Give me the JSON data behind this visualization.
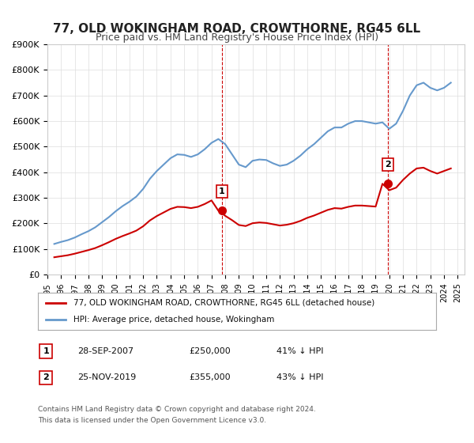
{
  "title": "77, OLD WOKINGHAM ROAD, CROWTHORNE, RG45 6LL",
  "subtitle": "Price paid vs. HM Land Registry's House Price Index (HPI)",
  "title_fontsize": 11,
  "subtitle_fontsize": 9,
  "background_color": "#ffffff",
  "plot_bg_color": "#ffffff",
  "grid_color": "#dddddd",
  "hpi_dates": [
    1995.5,
    1996.0,
    1996.5,
    1997.0,
    1997.5,
    1998.0,
    1998.5,
    1999.0,
    1999.5,
    2000.0,
    2000.5,
    2001.0,
    2001.5,
    2002.0,
    2002.5,
    2003.0,
    2003.5,
    2004.0,
    2004.5,
    2005.0,
    2005.5,
    2006.0,
    2006.5,
    2007.0,
    2007.5,
    2008.0,
    2008.5,
    2009.0,
    2009.5,
    2010.0,
    2010.5,
    2011.0,
    2011.5,
    2012.0,
    2012.5,
    2013.0,
    2013.5,
    2014.0,
    2014.5,
    2015.0,
    2015.5,
    2016.0,
    2016.5,
    2017.0,
    2017.5,
    2018.0,
    2018.5,
    2019.0,
    2019.5,
    2020.0,
    2020.5,
    2021.0,
    2021.5,
    2022.0,
    2022.5,
    2023.0,
    2023.5,
    2024.0,
    2024.5
  ],
  "hpi_values": [
    120000,
    128000,
    135000,
    145000,
    158000,
    170000,
    185000,
    205000,
    225000,
    248000,
    268000,
    285000,
    305000,
    335000,
    375000,
    405000,
    430000,
    455000,
    470000,
    468000,
    460000,
    470000,
    490000,
    515000,
    530000,
    510000,
    470000,
    430000,
    420000,
    445000,
    450000,
    448000,
    435000,
    425000,
    430000,
    445000,
    465000,
    490000,
    510000,
    535000,
    560000,
    575000,
    575000,
    590000,
    600000,
    600000,
    595000,
    590000,
    595000,
    570000,
    590000,
    640000,
    700000,
    740000,
    750000,
    730000,
    720000,
    730000,
    750000
  ],
  "sold_dates": [
    2007.75,
    2019.9
  ],
  "sold_values": [
    250000,
    355000
  ],
  "red_line_dates": [
    1995.5,
    1996.0,
    1996.5,
    1997.0,
    1997.5,
    1998.0,
    1998.5,
    1999.0,
    1999.5,
    2000.0,
    2000.5,
    2001.0,
    2001.5,
    2002.0,
    2002.5,
    2003.0,
    2003.5,
    2004.0,
    2004.5,
    2005.0,
    2005.5,
    2006.0,
    2006.5,
    2007.0,
    2007.5,
    2008.0,
    2008.5,
    2009.0,
    2009.5,
    2010.0,
    2010.5,
    2011.0,
    2011.5,
    2012.0,
    2012.5,
    2013.0,
    2013.5,
    2014.0,
    2014.5,
    2015.0,
    2015.5,
    2016.0,
    2016.5,
    2017.0,
    2017.5,
    2018.0,
    2018.5,
    2019.0,
    2019.5,
    2020.0,
    2020.5,
    2021.0,
    2021.5,
    2022.0,
    2022.5,
    2023.0,
    2023.5,
    2024.0,
    2024.5
  ],
  "red_line_values": [
    68000,
    72000,
    76000,
    82000,
    89000,
    96000,
    104000,
    115000,
    127000,
    140000,
    151000,
    161000,
    172000,
    189000,
    212000,
    229000,
    243000,
    257000,
    265000,
    264000,
    260000,
    265000,
    276000,
    290000,
    250000,
    230000,
    213000,
    194000,
    190000,
    201000,
    204000,
    202000,
    197000,
    192000,
    195000,
    201000,
    210000,
    222000,
    231000,
    242000,
    253000,
    260000,
    258000,
    265000,
    270000,
    270000,
    268000,
    266000,
    355000,
    330000,
    340000,
    370000,
    395000,
    415000,
    418000,
    405000,
    395000,
    405000,
    415000
  ],
  "marker1_date": 2007.75,
  "marker1_value": 250000,
  "marker1_label": "1",
  "marker1_info": "28-SEP-2007    £250,000    41% ↓ HPI",
  "marker2_date": 2019.9,
  "marker2_value": 355000,
  "marker2_label": "2",
  "marker2_info": "25-NOV-2019    £355,000    43% ↓ HPI",
  "vline1_date": 2007.75,
  "vline2_date": 2019.9,
  "ylim": [
    0,
    900000
  ],
  "xlim_start": 1995.0,
  "xlim_end": 2025.5,
  "ytick_values": [
    0,
    100000,
    200000,
    300000,
    400000,
    500000,
    600000,
    700000,
    800000,
    900000
  ],
  "ytick_labels": [
    "£0",
    "£100K",
    "£200K",
    "£300K",
    "£400K",
    "£500K",
    "£600K",
    "£700K",
    "£800K",
    "£900K"
  ],
  "xtick_years": [
    1995,
    1996,
    1997,
    1998,
    1999,
    2000,
    2001,
    2002,
    2003,
    2004,
    2005,
    2006,
    2007,
    2008,
    2009,
    2010,
    2011,
    2012,
    2013,
    2014,
    2015,
    2016,
    2017,
    2018,
    2019,
    2020,
    2021,
    2022,
    2023,
    2024,
    2025
  ],
  "legend_line1": "77, OLD WOKINGHAM ROAD, CROWTHORNE, RG45 6LL (detached house)",
  "legend_line2": "HPI: Average price, detached house, Wokingham",
  "red_color": "#cc0000",
  "blue_color": "#6699cc",
  "vline_color": "#cc0000",
  "footer1": "Contains HM Land Registry data © Crown copyright and database right 2024.",
  "footer2": "This data is licensed under the Open Government Licence v3.0.",
  "table_row1": [
    "1",
    "28-SEP-2007",
    "£250,000",
    "41% ↓ HPI"
  ],
  "table_row2": [
    "2",
    "25-NOV-2019",
    "£355,000",
    "43% ↓ HPI"
  ]
}
